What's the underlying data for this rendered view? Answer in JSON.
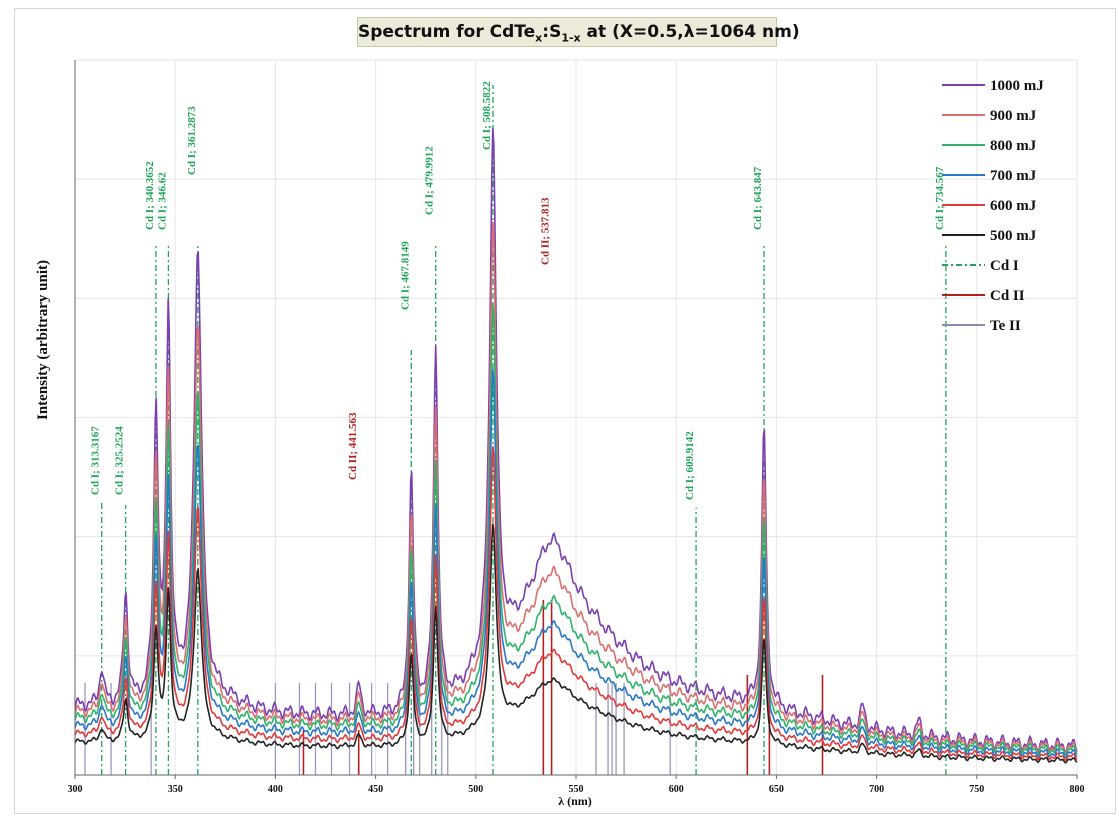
{
  "chart_data": {
    "type": "line",
    "title": "Spectrum for CdTe",
    "title_sub_x": "x",
    "title_mid": ":S",
    "title_sub_1x": "1-x",
    "title_tail": " at (X=0.5,λ=1064 nm)",
    "xlabel": "λ (nm)",
    "ylabel": "Intensity (arbitrary unit)",
    "xlim": [
      300,
      800
    ],
    "xticks": [
      300,
      350,
      400,
      450,
      500,
      550,
      600,
      650,
      700,
      750,
      800
    ],
    "grid": true,
    "legend_position": "top-right",
    "baseline_y": [
      0.44,
      0.4,
      0.36,
      0.31,
      0.26,
      0.21
    ],
    "peaks": [
      {
        "x": 313.3,
        "h": 0.25
      },
      {
        "x": 325.3,
        "h": 0.75
      },
      {
        "x": 340.4,
        "h": 1.95
      },
      {
        "x": 346.6,
        "h": 2.6
      },
      {
        "x": 361.3,
        "h": 3.0
      },
      {
        "x": 441.6,
        "h": 0.2
      },
      {
        "x": 467.8,
        "h": 1.6
      },
      {
        "x": 480.0,
        "h": 2.45
      },
      {
        "x": 508.6,
        "h": 3.6
      },
      {
        "x": 537.8,
        "h": 0.55
      },
      {
        "x": 643.8,
        "h": 1.9
      },
      {
        "x": 693.0,
        "h": 0.15
      },
      {
        "x": 721.0,
        "h": 0.1
      }
    ],
    "series": [
      {
        "name": "1000 mJ",
        "color": "#7a3fb0",
        "scale": 1.0
      },
      {
        "name": "900 mJ",
        "color": "#d9706f",
        "scale": 0.85
      },
      {
        "name": "800 mJ",
        "color": "#2fb36a",
        "scale": 0.72
      },
      {
        "name": "700 mJ",
        "color": "#2a78c9",
        "scale": 0.62
      },
      {
        "name": "600 mJ",
        "color": "#e03a3a",
        "scale": 0.5
      },
      {
        "name": "500 mJ",
        "color": "#222222",
        "scale": 0.38
      }
    ],
    "reference_series": [
      {
        "name": "Cd I",
        "color": "#1fa65a",
        "style": "dashdot"
      },
      {
        "name": "Cd II",
        "color": "#b22020",
        "style": "solid"
      },
      {
        "name": "Te II",
        "color": "#8f8ab0",
        "style": "solid"
      }
    ],
    "cd1_lines": [
      313.3167,
      325.2524,
      340.3652,
      346.62,
      361.2873,
      467.8149,
      479.9912,
      508.5822,
      609.9142,
      643.847,
      734.567
    ],
    "cd2_lines": [
      414.0,
      441.563,
      533.7,
      537.813,
      635.5,
      646.5,
      673.0
    ],
    "te2_lines": [
      305,
      318,
      338,
      400,
      412,
      420,
      428,
      437,
      448,
      456,
      465,
      469,
      472,
      478,
      483,
      486,
      560,
      566,
      568,
      570,
      574,
      597
    ],
    "annotations": [
      {
        "text": "Cd I; 313.3167",
        "x": 313.3,
        "color": "green"
      },
      {
        "text": "Cd I; 325.2524",
        "x": 325.3,
        "color": "green"
      },
      {
        "text": "Cd I; 340.3652",
        "x": 340.4,
        "color": "green"
      },
      {
        "text": "Cd I; 346.62",
        "x": 346.6,
        "color": "green"
      },
      {
        "text": "Cd I; 361.2873",
        "x": 361.3,
        "color": "green"
      },
      {
        "text": "Cd II; 441.563",
        "x": 441.6,
        "color": "red"
      },
      {
        "text": "Cd I; 467.8149",
        "x": 467.8,
        "color": "green"
      },
      {
        "text": "Cd I; 479.9912",
        "x": 480.0,
        "color": "green"
      },
      {
        "text": "Cd I; 508.5822",
        "x": 508.6,
        "color": "green"
      },
      {
        "text": "Cd II; 537.813",
        "x": 537.8,
        "color": "red"
      },
      {
        "text": "Cd I; 609.9142",
        "x": 609.9,
        "color": "green"
      },
      {
        "text": "Cd I; 643.847",
        "x": 643.8,
        "color": "green"
      },
      {
        "text": "Cd I; 734.567",
        "x": 734.6,
        "color": "green"
      }
    ]
  }
}
